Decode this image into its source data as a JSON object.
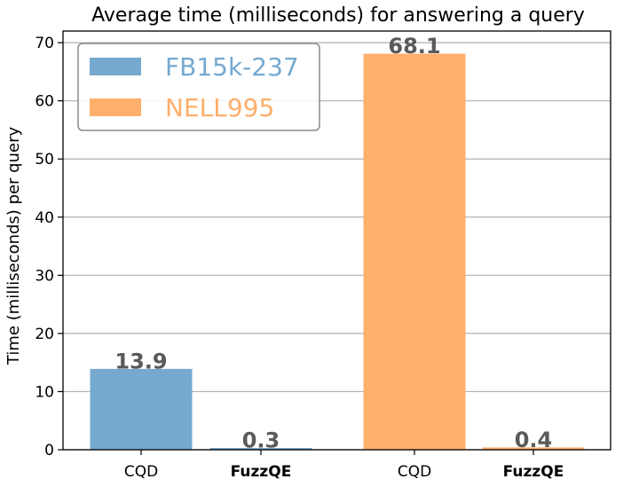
{
  "chart_data": {
    "type": "bar",
    "title": "Average time (milliseconds) for answering a query",
    "ylabel": "Time (milliseconds) per query",
    "xlabel": "",
    "ylim": [
      0,
      72
    ],
    "yticks": [
      0,
      10,
      20,
      30,
      40,
      50,
      60,
      70
    ],
    "grid": "horizontal",
    "legend_position": "top-left",
    "series": [
      {
        "name": "FB15k-237",
        "color": "#75a9d0",
        "categories": [
          "CQD",
          "FuzzQE"
        ],
        "values": [
          13.9,
          0.3
        ],
        "labels": [
          "13.9",
          "0.3"
        ]
      },
      {
        "name": "NELL995",
        "color": "#fdaf6b",
        "categories": [
          "CQD",
          "FuzzQE"
        ],
        "values": [
          68.1,
          0.4
        ],
        "labels": [
          "68.1",
          "0.4"
        ]
      }
    ],
    "bold_categories": [
      "FuzzQE"
    ],
    "label_color": "#5a5a5a"
  }
}
